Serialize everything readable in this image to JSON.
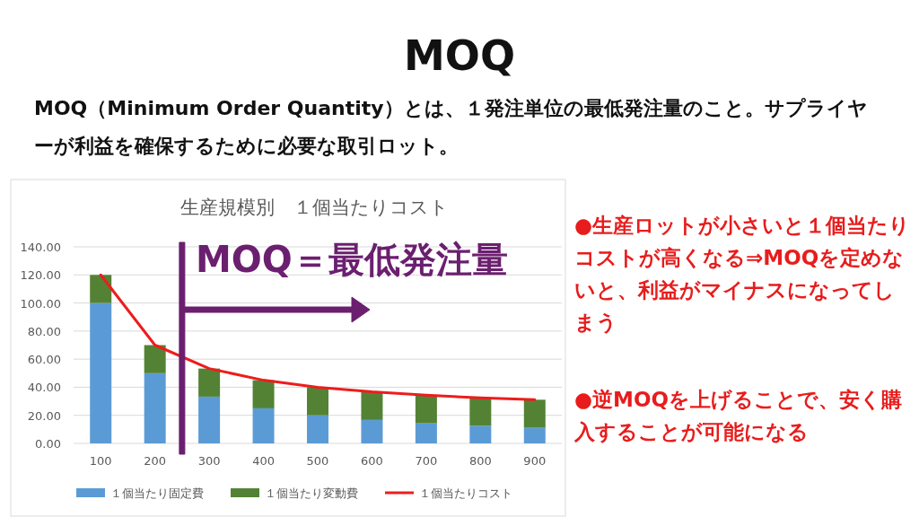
{
  "chart_data": {
    "type": "bar",
    "title": "MOQ",
    "subtitle": "MOQ（Minimum Order Quantity）とは、１発注単位の最低発注量のこと。サプライヤーが利益を確保するために必要な取引ロット。",
    "categories": [
      "100",
      "200",
      "300",
      "400",
      "500",
      "600",
      "700",
      "800",
      "900"
    ],
    "stacked": true,
    "series": [
      {
        "name": "１個当たり固定費",
        "color": "#5b9bd5",
        "values": [
          100,
          50,
          33.3,
          25,
          20,
          16.7,
          14.3,
          12.5,
          11.1
        ]
      },
      {
        "name": "１個当たり変動費",
        "color": "#548235",
        "values": [
          20,
          20,
          20,
          20,
          20,
          20,
          20,
          20,
          20
        ]
      },
      {
        "name": "１個当たりコスト",
        "type": "line",
        "color": "#ee1c1c",
        "values": [
          120,
          70,
          53.3,
          45,
          40,
          36.7,
          34.3,
          32.5,
          31.1
        ]
      }
    ],
    "ylim": [
      0,
      140
    ],
    "yticks": [
      {
        "value": 0,
        "label": "0.00"
      },
      {
        "value": 20,
        "label": "20.00"
      },
      {
        "value": 40,
        "label": "40.00"
      },
      {
        "value": 60,
        "label": "60.00"
      },
      {
        "value": 80,
        "label": "80.00"
      },
      {
        "value": 100,
        "label": "100.00"
      },
      {
        "value": 120,
        "label": "120.00"
      },
      {
        "value": 140,
        "label": "140.00"
      }
    ],
    "grid": "y",
    "legend": "bottom",
    "marker": "none",
    "annotations": [
      "生産規模別　１個当たりコスト",
      "MOQ＝最低発注量",
      "●生産ロットが小さいと１個当たりコストが高くなる⇒MOQを定めないと、利益がマイナスになってしまう",
      "●逆MOQを上げることで、安く購入することが可能になる"
    ]
  }
}
